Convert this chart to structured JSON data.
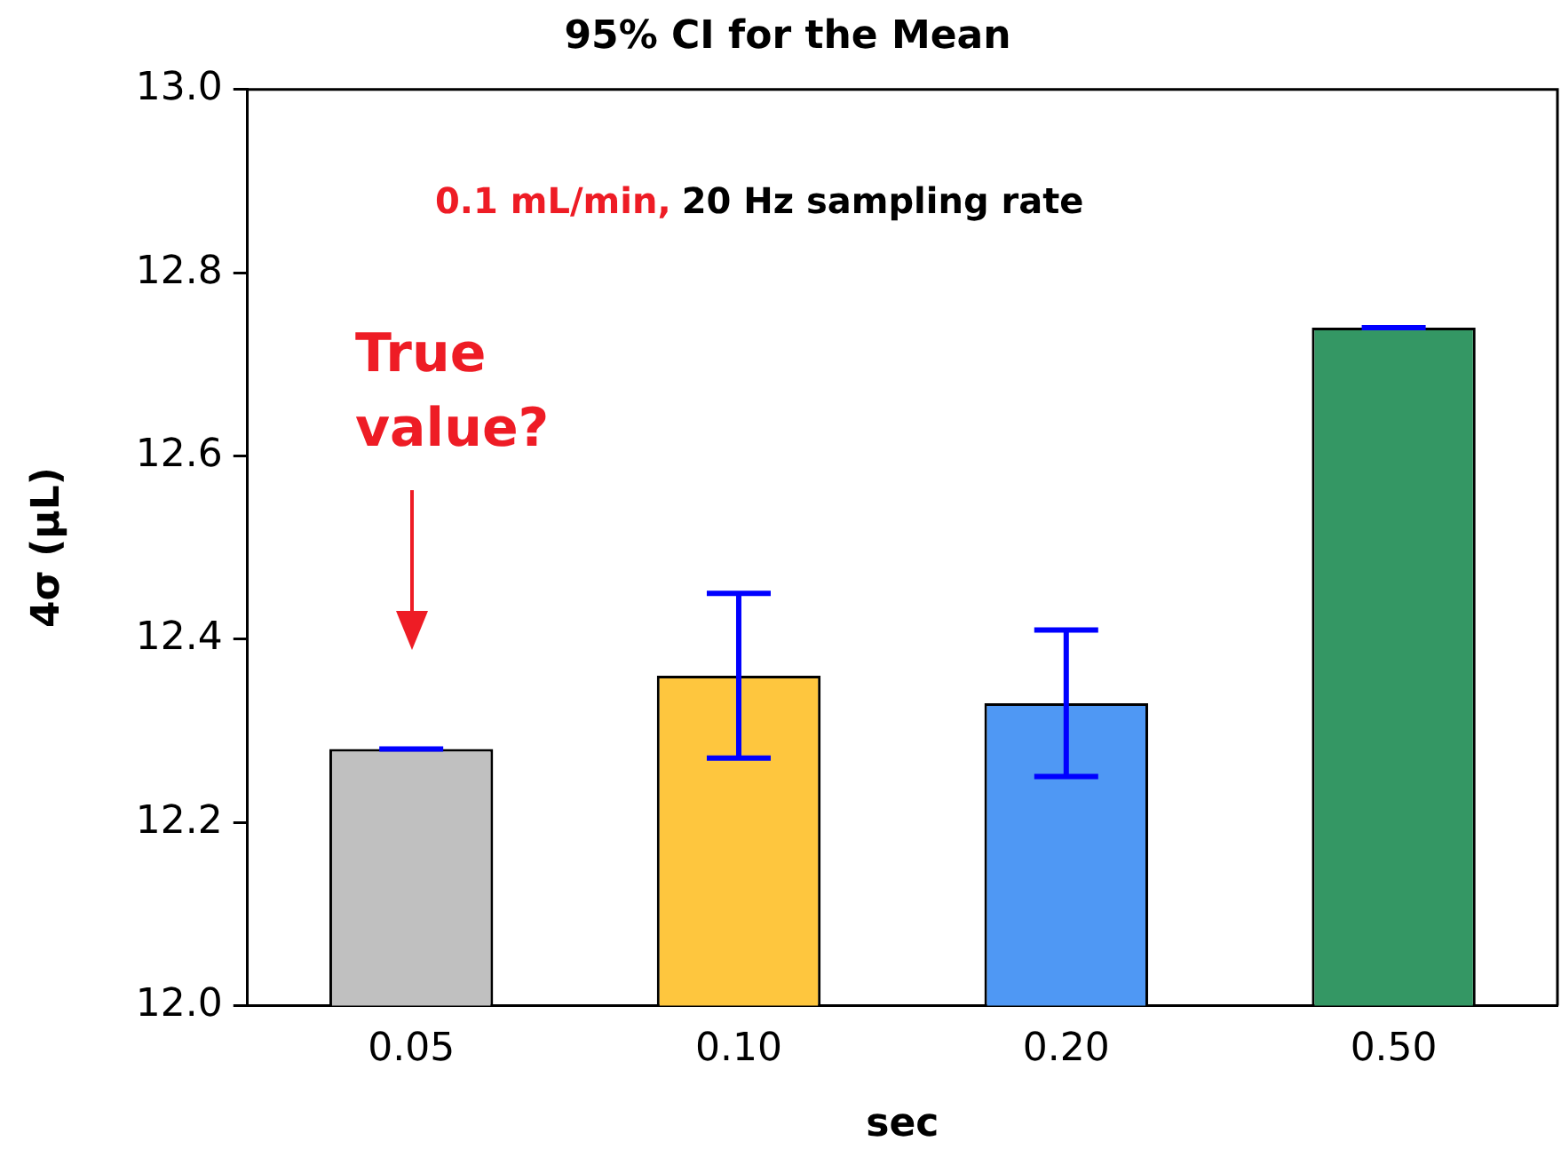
{
  "chart_data": {
    "type": "bar",
    "title": "95% CI for the Mean",
    "xlabel": "sec",
    "ylabel": "4σ (μL)",
    "categories": [
      "0.05",
      "0.10",
      "0.20",
      "0.50"
    ],
    "values": [
      12.28,
      12.36,
      12.33,
      12.74
    ],
    "colors": [
      "#c0c0c0",
      "#fec63e",
      "#4f98f4",
      "#349764"
    ],
    "errors": [
      0,
      [
        12.27,
        12.45
      ],
      [
        12.25,
        12.41
      ],
      0
    ],
    "ylim": [
      12.0,
      13.0
    ],
    "yticks": [
      {
        "value": 12.0,
        "label": "12.0"
      },
      {
        "value": 12.2,
        "label": "12.2"
      },
      {
        "value": 12.4,
        "label": "12.4"
      },
      {
        "value": 12.6,
        "label": "12.6"
      },
      {
        "value": 12.8,
        "label": "12.8"
      },
      {
        "value": 13.0,
        "label": "13.0"
      }
    ],
    "grid": false,
    "legend": false,
    "annotations": [
      "0.1 mL/min,",
      "20 Hz sampling rate",
      "True value?"
    ]
  }
}
